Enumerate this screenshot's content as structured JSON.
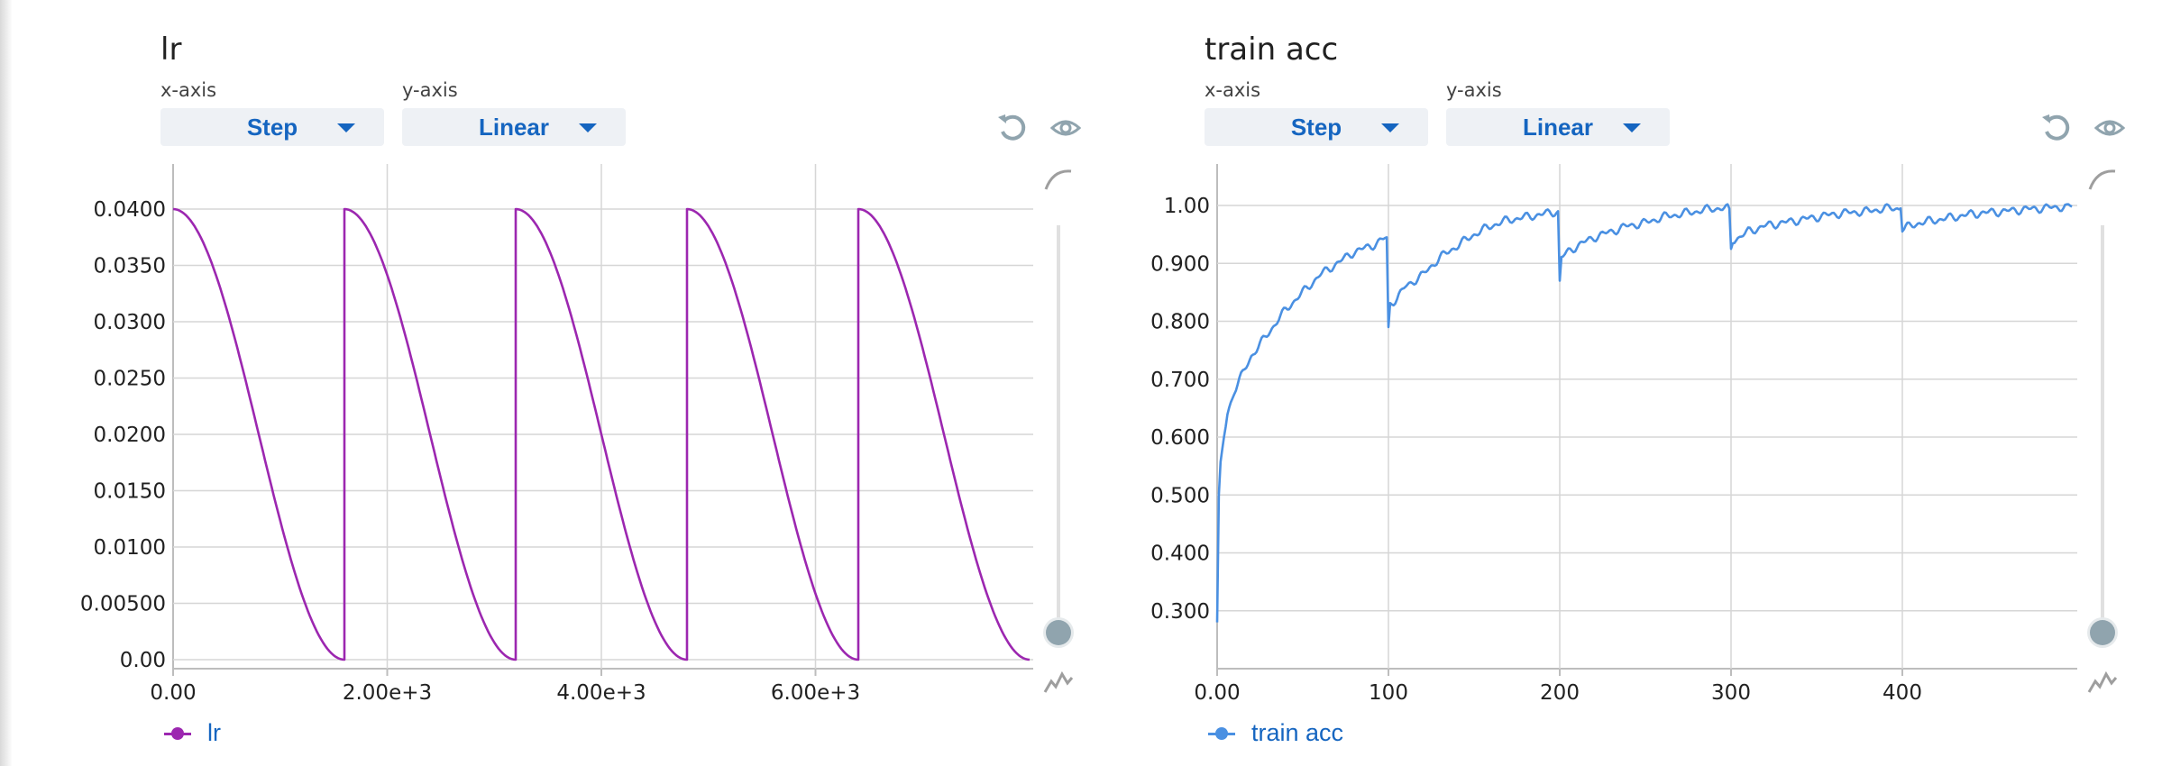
{
  "colors": {
    "lr": "#9c27b0",
    "train_acc": "#4a90e2",
    "accent": "#1565c0",
    "grid": "#d6d6d6"
  },
  "icons": [
    "reset-icon",
    "eye-icon",
    "smooth-icon",
    "raw-icon"
  ],
  "panels": [
    {
      "title": "lr",
      "xaxis_label": "x-axis",
      "yaxis_label": "y-axis",
      "xaxis_value": "Step",
      "yaxis_value": "Linear",
      "legend": "lr"
    },
    {
      "title": "train acc",
      "xaxis_label": "x-axis",
      "yaxis_label": "y-axis",
      "xaxis_value": "Step",
      "yaxis_value": "Linear",
      "legend": "train acc"
    }
  ],
  "chart_data": [
    {
      "type": "line",
      "title": "lr",
      "series": [
        {
          "name": "lr",
          "color": "#9c27b0",
          "x": [
            0,
            400,
            800,
            1200,
            1600,
            1601,
            2000,
            2400,
            2800,
            3200,
            3201,
            3600,
            4000,
            4400,
            4800,
            4801,
            5200,
            5600,
            6000,
            6400,
            6401,
            6800,
            7200,
            7600,
            8000
          ],
          "y": [
            0.04,
            0.0341,
            0.02,
            0.0059,
            0,
            0.04,
            0.0341,
            0.02,
            0.0059,
            0,
            0.04,
            0.0341,
            0.02,
            0.0059,
            0,
            0.04,
            0.0341,
            0.02,
            0.0059,
            0,
            0.04,
            0.0341,
            0.02,
            0.0059,
            0
          ]
        }
      ],
      "xlim": [
        0,
        8000
      ],
      "ylim": [
        0,
        0.04
      ],
      "x_ticks": [
        {
          "v": 0,
          "label": "0.00"
        },
        {
          "v": 2000,
          "label": "2.00e+3"
        },
        {
          "v": 4000,
          "label": "4.00e+3"
        },
        {
          "v": 6000,
          "label": "6.00e+3"
        }
      ],
      "y_ticks": [
        {
          "v": 0.04,
          "label": "0.0400"
        },
        {
          "v": 0.035,
          "label": "0.0350"
        },
        {
          "v": 0.03,
          "label": "0.0300"
        },
        {
          "v": 0.025,
          "label": "0.0250"
        },
        {
          "v": 0.02,
          "label": "0.0200"
        },
        {
          "v": 0.015,
          "label": "0.0150"
        },
        {
          "v": 0.01,
          "label": "0.0100"
        },
        {
          "v": 0.005,
          "label": "0.00500"
        },
        {
          "v": 0,
          "label": "0.00"
        }
      ],
      "grid": true
    },
    {
      "type": "line",
      "title": "train acc",
      "series": [
        {
          "name": "train acc",
          "color": "#4a90e2",
          "x": [
            0,
            1,
            2,
            4,
            6,
            10,
            15,
            20,
            25,
            30,
            40,
            50,
            60,
            70,
            80,
            90,
            99,
            100,
            101,
            105,
            110,
            120,
            130,
            140,
            150,
            160,
            170,
            180,
            190,
            199,
            200,
            201,
            205,
            210,
            220,
            230,
            240,
            250,
            260,
            270,
            280,
            290,
            299,
            300,
            301,
            305,
            310,
            320,
            330,
            340,
            350,
            360,
            370,
            380,
            390,
            399,
            400,
            401,
            405,
            410,
            420,
            430,
            440,
            450,
            460,
            470,
            480,
            490,
            499
          ],
          "y": [
            0.28,
            0.5,
            0.55,
            0.6,
            0.64,
            0.68,
            0.71,
            0.74,
            0.76,
            0.78,
            0.82,
            0.85,
            0.88,
            0.9,
            0.92,
            0.93,
            0.945,
            0.79,
            0.83,
            0.84,
            0.86,
            0.88,
            0.91,
            0.93,
            0.95,
            0.965,
            0.975,
            0.98,
            0.985,
            0.99,
            0.87,
            0.91,
            0.92,
            0.93,
            0.945,
            0.955,
            0.965,
            0.97,
            0.98,
            0.985,
            0.99,
            0.995,
            0.995,
            0.925,
            0.94,
            0.945,
            0.955,
            0.965,
            0.97,
            0.975,
            0.98,
            0.985,
            0.988,
            0.99,
            0.995,
            0.995,
            0.955,
            0.96,
            0.965,
            0.97,
            0.975,
            0.98,
            0.985,
            0.988,
            0.99,
            0.993,
            0.995,
            0.997,
            0.998
          ]
        }
      ],
      "xlim": [
        0,
        500
      ],
      "ylim": [
        0.2,
        1.0
      ],
      "x_ticks": [
        {
          "v": 0,
          "label": "0.00"
        },
        {
          "v": 100,
          "label": "100"
        },
        {
          "v": 200,
          "label": "200"
        },
        {
          "v": 300,
          "label": "300"
        },
        {
          "v": 400,
          "label": "400"
        }
      ],
      "y_ticks": [
        {
          "v": 1.0,
          "label": "1.00"
        },
        {
          "v": 0.9,
          "label": "0.900"
        },
        {
          "v": 0.8,
          "label": "0.800"
        },
        {
          "v": 0.7,
          "label": "0.700"
        },
        {
          "v": 0.6,
          "label": "0.600"
        },
        {
          "v": 0.5,
          "label": "0.500"
        },
        {
          "v": 0.4,
          "label": "0.400"
        },
        {
          "v": 0.3,
          "label": "0.300"
        }
      ],
      "grid": true
    }
  ]
}
